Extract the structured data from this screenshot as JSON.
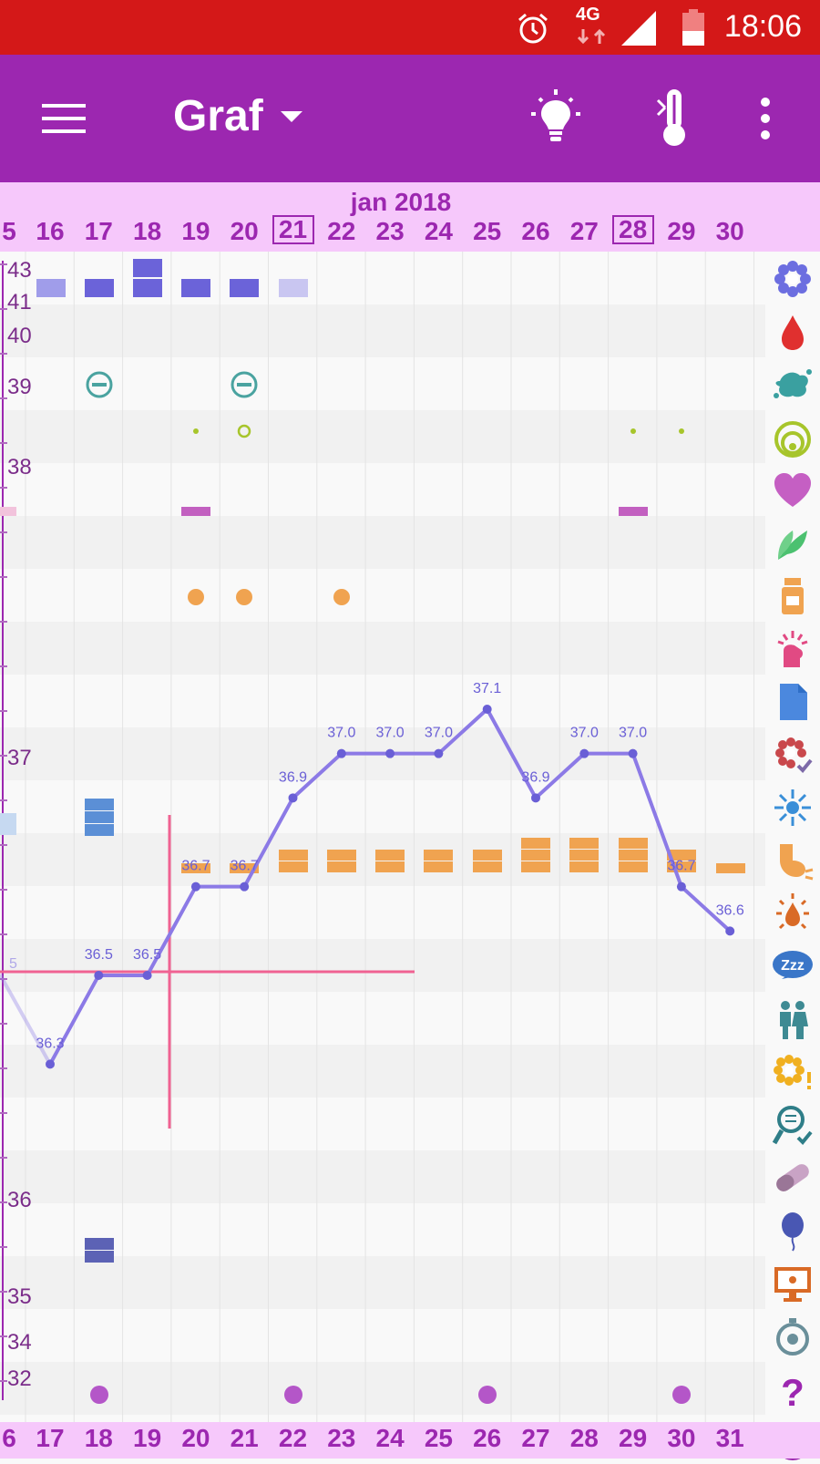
{
  "status_bar": {
    "time": "18:06",
    "network": "4G",
    "icons": [
      "alarm-icon",
      "signal-icon",
      "battery-icon"
    ],
    "color": "#d41818"
  },
  "app_bar": {
    "title": "Graf",
    "actions": [
      "menu-icon",
      "dropdown-icon",
      "lightbulb-icon",
      "thermometer-icon",
      "more-icon"
    ],
    "color": "#9c27b0"
  },
  "calendar": {
    "month_label": "jan 2018",
    "header_days": [
      "5",
      "16",
      "17",
      "18",
      "19",
      "20",
      "21",
      "22",
      "23",
      "24",
      "25",
      "26",
      "27",
      "28",
      "29",
      "30"
    ],
    "highlighted_days": [
      "21",
      "28"
    ],
    "footer_days": [
      "6",
      "17",
      "18",
      "19",
      "20",
      "21",
      "22",
      "23",
      "24",
      "25",
      "26",
      "27",
      "28",
      "29",
      "30",
      "31"
    ]
  },
  "chart_data": {
    "type": "line",
    "y_axis_labels": [
      "43",
      "41",
      "40",
      "39",
      "38",
      "37",
      "36",
      "35",
      "34",
      "32"
    ],
    "temperature_series": {
      "x": [
        "16",
        "17",
        "18",
        "19",
        "20",
        "21",
        "22",
        "23",
        "24",
        "25",
        "26",
        "27",
        "28",
        "29",
        "30"
      ],
      "labels": [
        "36.3",
        "36.5",
        "36.5",
        "36.7",
        "36.7",
        "36.9",
        "37.0",
        "37.0",
        "37.0",
        "37.1",
        "36.9",
        "37.0",
        "37.0",
        "36.7",
        "36.6"
      ],
      "values": [
        36.3,
        36.5,
        36.5,
        36.7,
        36.7,
        36.9,
        37.0,
        37.0,
        37.0,
        37.1,
        36.9,
        37.0,
        37.0,
        36.7,
        36.6
      ],
      "color": "#8c7ae6"
    },
    "edge_label": "5",
    "coverline_color": "#f06292"
  },
  "right_column_icons": [
    "flower-icon",
    "blood-drop-icon",
    "splash-icon",
    "cervix-icon",
    "heart-icon",
    "leaf-icon",
    "pill-bottle-icon",
    "hand-icon",
    "document-icon",
    "flower-check-icon",
    "sparkle-icon",
    "breast-icon",
    "drop-burst-icon",
    "sleep-icon",
    "couple-icon",
    "flower-alert-icon",
    "test-icon",
    "capsule-icon",
    "balloon-icon",
    "monitor-icon",
    "stopwatch-icon",
    "help-icon",
    "circle-icon"
  ]
}
